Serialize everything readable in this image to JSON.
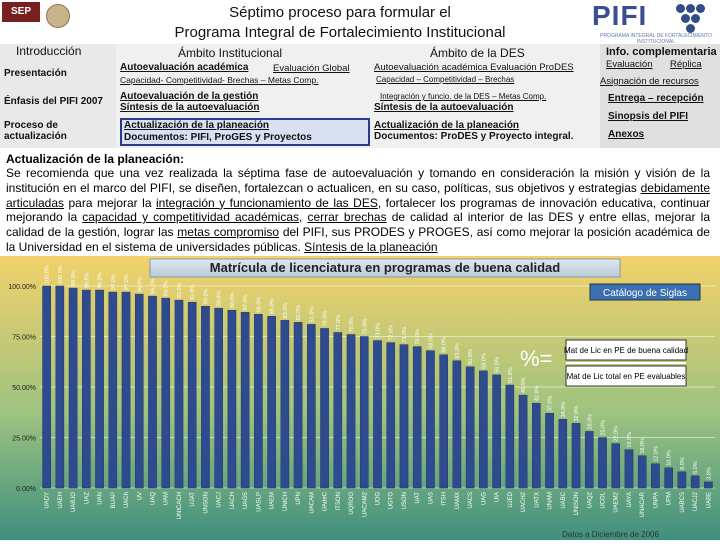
{
  "header": {
    "sep_label": "SEP",
    "title_line1": "Séptimo proceso para formular el",
    "title_line2": "Programa Integral de Fortalecimiento Institucional",
    "pifi_label": "PIFI",
    "pifi_sub": "PROGRAMA INTEGRAL DE FORTALECIMIENTO INSTITUCIONAL"
  },
  "nav": {
    "col1": {
      "heading": "Introducción",
      "items": [
        "Presentación",
        "Énfasis del PIFI 2007",
        "Proceso de",
        "actualización"
      ]
    },
    "col2": {
      "heading": "Ámbito Institucional",
      "item1_main": "Autoevaluación académica",
      "item1_extra": "Evaluación Global",
      "item1_sub": "Capacidad- Competitividad- Brechas – Metas Comp.",
      "item2_line1": "Autoevaluación de la gestión",
      "item2_line2": "Síntesis de la autoevaluación",
      "item3_line1": "Actualización de la planeación",
      "item3_line2": "Documentos: PIFI, ProGES y Proyectos"
    },
    "col3": {
      "heading": "Ámbito de la DES",
      "item1": "Autoevaluación académica Evaluación ProDES",
      "item1_sub": "Capacidad – Competitividad – Brechas",
      "item2_sub": "Integración y funcio. de la DES – Metas Comp.",
      "item2": "Síntesis de la autoevaluación",
      "item3_line1": "Actualización de la planeación",
      "item3_line2": "Documentos: ProDES y Proyecto integral."
    },
    "col4": {
      "heading": "Info. complementaria",
      "eval": "Evaluación",
      "replica": "Réplica",
      "asignacion": "Asignación de recursos",
      "entrega": "Entrega – recepción",
      "sinopsis": "Sinopsis del PIFI",
      "anexos": "Anexos"
    }
  },
  "content": {
    "title": "Actualización de la planeación:",
    "p1": "Se recomienda que una vez realizada la séptima fase de autoevaluación y tomando en consideración la misión y visión de la institución en el marco del PIFI, se diseñen, fortalezcan o actualicen, en su caso, políticas, sus objetivos y estrategias ",
    "l1": "debidamente articuladas",
    "p2": " para mejorar la ",
    "l2": "integración y funcionamiento de las DES",
    "p3": ", fortalecer los programas de innovación educativa, continuar mejorando la ",
    "l3": "capacidad y competitividad académicas",
    "p4": ", ",
    "l4": "cerrar brechas",
    "p5": " de calidad al interior de las DES y entre ellas, mejorar la calidad de la gestión, lograr las ",
    "l5": "metas compromiso",
    "p6": " del PIFI, sus PRODES y PROGES, así como mejorar la posición académica de la Universidad en el sistema de universidades públicas. ",
    "l6": "Síntesis de la planeación"
  },
  "footer": {
    "date": "Datos a Diciembre de 2006"
  },
  "chart_data": {
    "type": "bar",
    "title": "Matrícula de licenciatura en programas de buena calidad",
    "categories": [
      "UADY",
      "UAEH",
      "UABJO",
      "UAZ",
      "UAN",
      "BUAP",
      "UACh",
      "UV",
      "UAQ",
      "UAM",
      "UNICACH",
      "UJAT",
      "UNSON",
      "UACJ",
      "UACH",
      "UAGS",
      "UASLP",
      "UAEM",
      "UNICH",
      "UPN",
      "UACAM",
      "UAdeC",
      "ITSON",
      "UQROO",
      "UACAM2",
      "UDG",
      "UGTO",
      "USON",
      "UAT",
      "UAS",
      "ITSH",
      "UAMX",
      "UACS",
      "UAG",
      "UIA",
      "UJED",
      "UACH2",
      "UATX",
      "UNAM",
      "UABC",
      "UNISON",
      "UAQ2",
      "UCOL",
      "UAEM2",
      "UAYA",
      "UNACAR",
      "UNPA",
      "UPM",
      "UABCS",
      "UACJ2",
      "UABE"
    ],
    "values": [
      100,
      100,
      99,
      98,
      98,
      97,
      97,
      96,
      95,
      94,
      93,
      92,
      90,
      89,
      88,
      87,
      86,
      85,
      83,
      82,
      81,
      79,
      77,
      76,
      75,
      73,
      72,
      71,
      70,
      68,
      66,
      63,
      60,
      58,
      56,
      51,
      46,
      42,
      37,
      34,
      32,
      28,
      25,
      22,
      19,
      16,
      12,
      10,
      8,
      6,
      3
    ],
    "ylim": [
      0,
      100
    ],
    "yticks": [
      "0.00%",
      "25.00%",
      "50.00%",
      "75.00%",
      "100.00%"
    ],
    "legend_title": "Catálogo de Siglas",
    "formula_prefix": "%=",
    "formula_numerator": "Mat de Lic en PE de buena calidad",
    "formula_denominator": "Mat de Lic total en PE evaluables",
    "bar_color": "#2f4b8f",
    "background_gradient": [
      "#f2d16b",
      "#9ec37f",
      "#3f8f7f"
    ]
  }
}
